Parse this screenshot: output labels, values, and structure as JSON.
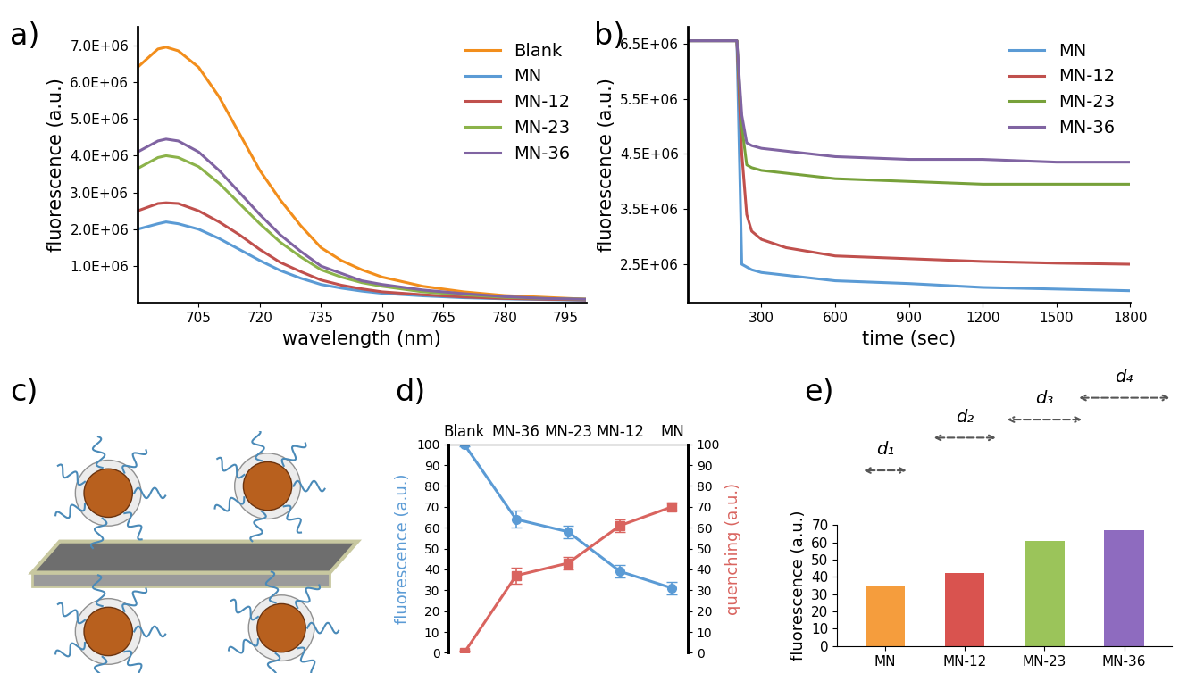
{
  "chart_data": [
    {
      "type": "line",
      "title": "a)",
      "x_label": "wavelength (nm)",
      "y_label": "fluorescence (a.u.)",
      "x": [
        690,
        695,
        697,
        700,
        705,
        710,
        715,
        720,
        725,
        730,
        735,
        740,
        745,
        750,
        760,
        770,
        780,
        790,
        800
      ],
      "series": [
        {
          "name": "Blank",
          "color": "#f28e1c",
          "values": [
            6400000,
            6900000,
            6950000,
            6850000,
            6400000,
            5600000,
            4600000,
            3600000,
            2800000,
            2100000,
            1500000,
            1150000,
            900000,
            700000,
            450000,
            300000,
            200000,
            150000,
            100000
          ]
        },
        {
          "name": "MN",
          "color": "#5b9bd5",
          "values": [
            2000000,
            2150000,
            2200000,
            2150000,
            2000000,
            1750000,
            1450000,
            1150000,
            880000,
            670000,
            500000,
            400000,
            320000,
            260000,
            190000,
            140000,
            110000,
            90000,
            70000
          ]
        },
        {
          "name": "MN-12",
          "color": "#c0504d",
          "values": [
            2500000,
            2700000,
            2720000,
            2700000,
            2500000,
            2200000,
            1850000,
            1450000,
            1100000,
            850000,
            620000,
            480000,
            380000,
            300000,
            220000,
            160000,
            120000,
            100000,
            80000
          ]
        },
        {
          "name": "MN-23",
          "color": "#8cb34a",
          "values": [
            3650000,
            3950000,
            4000000,
            3950000,
            3700000,
            3250000,
            2700000,
            2150000,
            1650000,
            1250000,
            900000,
            700000,
            550000,
            450000,
            300000,
            220000,
            150000,
            120000,
            100000
          ]
        },
        {
          "name": "MN-36",
          "color": "#8064a2",
          "values": [
            4100000,
            4400000,
            4450000,
            4400000,
            4100000,
            3600000,
            3000000,
            2400000,
            1850000,
            1400000,
            1000000,
            800000,
            600000,
            500000,
            350000,
            250000,
            170000,
            120000,
            100000
          ]
        }
      ],
      "xlim": [
        690,
        800
      ],
      "xticks": [
        705,
        720,
        735,
        750,
        765,
        780,
        795
      ],
      "ylim": [
        0,
        7500000
      ],
      "yticks": [
        {
          "value": 1000000,
          "label": "1.0E+06"
        },
        {
          "value": 2000000,
          "label": "2.0E+06"
        },
        {
          "value": 3000000,
          "label": "3.0E+06"
        },
        {
          "value": 4000000,
          "label": "4.0E+06"
        },
        {
          "value": 5000000,
          "label": "5.0E+06"
        },
        {
          "value": 6000000,
          "label": "6.0E+06"
        },
        {
          "value": 7000000,
          "label": "7.0E+06"
        }
      ],
      "legend": "upper right",
      "line_style": "solid"
    },
    {
      "type": "line",
      "title": "b)",
      "x_label": "time (sec)",
      "y_label": "fluorescence (a.u.)",
      "x": [
        0,
        100,
        200,
        220,
        240,
        260,
        300,
        400,
        600,
        900,
        1200,
        1500,
        1800
      ],
      "series": [
        {
          "name": "MN",
          "color": "#5b9bd5",
          "values": [
            6550000,
            6550000,
            6550000,
            2500000,
            2450000,
            2400000,
            2350000,
            2300000,
            2200000,
            2150000,
            2080000,
            2050000,
            2020000
          ]
        },
        {
          "name": "MN-12",
          "color": "#c0504d",
          "values": [
            6550000,
            6550000,
            6550000,
            4500000,
            3400000,
            3100000,
            2950000,
            2800000,
            2650000,
            2600000,
            2550000,
            2520000,
            2500000
          ]
        },
        {
          "name": "MN-23",
          "color": "#77a13a",
          "values": [
            6550000,
            6550000,
            6550000,
            5000000,
            4300000,
            4250000,
            4200000,
            4150000,
            4050000,
            4000000,
            3950000,
            3950000,
            3950000
          ]
        },
        {
          "name": "MN-36",
          "color": "#8064a2",
          "values": [
            6550000,
            6550000,
            6550000,
            5200000,
            4700000,
            4650000,
            4600000,
            4550000,
            4450000,
            4400000,
            4400000,
            4350000,
            4350000
          ]
        }
      ],
      "xlim": [
        0,
        1800
      ],
      "xticks": [
        300,
        600,
        900,
        1200,
        1500,
        1800
      ],
      "ylim": [
        1800000,
        6800000
      ],
      "yticks": [
        {
          "value": 2500000,
          "label": "2.5E+06"
        },
        {
          "value": 3500000,
          "label": "3.5E+06"
        },
        {
          "value": 4500000,
          "label": "4.5E+06"
        },
        {
          "value": 5500000,
          "label": "5.5E+06"
        },
        {
          "value": 6500000,
          "label": "6.5E+06"
        }
      ],
      "legend": "upper right",
      "line_style": "solid"
    },
    {
      "type": "diagram",
      "title": "c)"
    },
    {
      "type": "line",
      "title": "d)",
      "y_label": "fluorescence (a.u.)",
      "y2_label": "quenching (a.u.)",
      "categories": [
        "Blank",
        "MN-36",
        "MN-23",
        "MN-12",
        "MN"
      ],
      "series": [
        {
          "color": "#5b9bd5",
          "marker": "circle",
          "values": [
            100,
            64,
            58,
            39,
            31
          ],
          "errors": [
            1,
            4,
            3,
            3,
            3
          ]
        },
        {
          "color": "#d9645f",
          "marker": "square",
          "axis": "y2",
          "values": [
            0,
            37,
            43,
            61,
            70
          ],
          "errors": [
            1,
            4,
            3,
            3,
            2
          ]
        }
      ],
      "ylim": [
        0,
        100
      ],
      "yticks": [
        0,
        10,
        20,
        30,
        40,
        50,
        60,
        70,
        80,
        90,
        100
      ],
      "y2lim": [
        0,
        100
      ],
      "y2ticks": [
        0,
        10,
        20,
        30,
        40,
        50,
        60,
        70,
        80,
        90,
        100
      ]
    },
    {
      "type": "bar",
      "title": "e)",
      "y_label": "fluorescence (a.u.)",
      "categories": [
        "MN",
        "MN-12",
        "MN-23",
        "MN-36"
      ],
      "values": [
        35,
        42,
        61,
        67
      ],
      "colors": [
        "#f59d3d",
        "#d9534f",
        "#9bc45a",
        "#8e6bbf"
      ],
      "annotations": [
        "d₁",
        "d₂",
        "d₃",
        "d₄"
      ],
      "ylim": [
        0,
        70
      ],
      "yticks": [
        0,
        10,
        20,
        30,
        40,
        50,
        60,
        70
      ]
    }
  ]
}
